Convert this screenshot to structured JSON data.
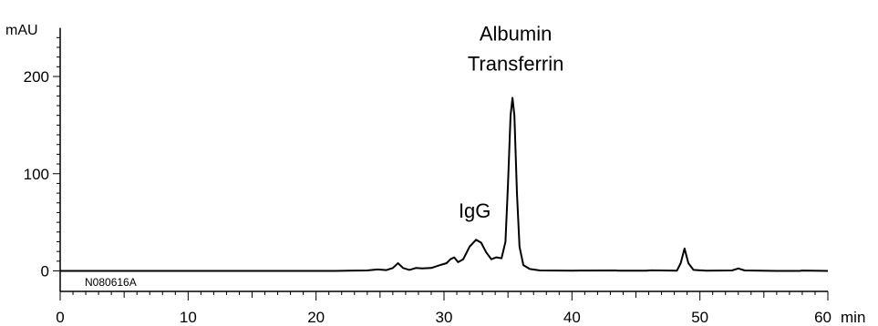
{
  "chart_data": {
    "type": "line",
    "title": "",
    "xlabel": "min",
    "ylabel": "mAU",
    "xlim": [
      0,
      60
    ],
    "ylim": [
      -7,
      250
    ],
    "x_ticks": [
      0,
      10,
      20,
      30,
      40,
      50,
      60
    ],
    "x_tick_labels": [
      "0",
      "10",
      "20",
      "30",
      "40",
      "50",
      "60"
    ],
    "y_ticks": [
      0,
      100,
      200
    ],
    "y_tick_labels": [
      "0",
      "100",
      "200"
    ],
    "grid": false,
    "legend": "none",
    "line_color": "#000000",
    "sample_id": "N080616A",
    "baseline": [
      [
        0,
        0
      ],
      [
        21.5,
        0
      ],
      [
        24,
        0.5
      ],
      [
        24.8,
        1.5
      ],
      [
        25.5,
        0.8
      ],
      [
        26.0,
        3
      ],
      [
        26.4,
        8
      ],
      [
        26.8,
        3
      ],
      [
        27.3,
        1
      ],
      [
        27.8,
        3
      ],
      [
        28.3,
        2.5
      ],
      [
        29,
        3
      ],
      [
        29.7,
        6
      ],
      [
        30.2,
        8
      ],
      [
        30.5,
        12
      ],
      [
        30.8,
        14
      ],
      [
        31.1,
        9
      ],
      [
        31.5,
        12
      ],
      [
        32.0,
        25
      ],
      [
        32.5,
        32
      ],
      [
        32.9,
        29
      ],
      [
        33.3,
        19
      ],
      [
        33.7,
        12
      ],
      [
        34.1,
        14
      ],
      [
        34.5,
        13
      ],
      [
        34.8,
        30
      ],
      [
        35.0,
        90
      ],
      [
        35.2,
        160
      ],
      [
        35.35,
        178
      ],
      [
        35.5,
        160
      ],
      [
        35.7,
        80
      ],
      [
        35.9,
        25
      ],
      [
        36.2,
        6
      ],
      [
        36.7,
        2
      ],
      [
        37.5,
        0.5
      ],
      [
        40,
        0.3
      ],
      [
        43.4,
        0.5
      ],
      [
        43.6,
        0.2
      ],
      [
        45.8,
        0.2
      ],
      [
        46.2,
        0.6
      ],
      [
        48.2,
        0.2
      ],
      [
        48.5,
        8
      ],
      [
        48.8,
        23
      ],
      [
        49.1,
        8
      ],
      [
        49.5,
        1
      ],
      [
        50.5,
        0.3
      ],
      [
        52.5,
        0.5
      ],
      [
        53.0,
        2.5
      ],
      [
        53.5,
        0.5
      ],
      [
        56,
        0
      ],
      [
        57.8,
        0
      ],
      [
        58,
        0.4
      ],
      [
        60,
        0
      ]
    ],
    "annotations": [
      {
        "text": "Albumin",
        "x": 35.6,
        "y": 237
      },
      {
        "text": "Transferrin",
        "x": 35.6,
        "y": 206
      },
      {
        "text": "IgG",
        "x": 32.4,
        "y": 55
      }
    ]
  }
}
